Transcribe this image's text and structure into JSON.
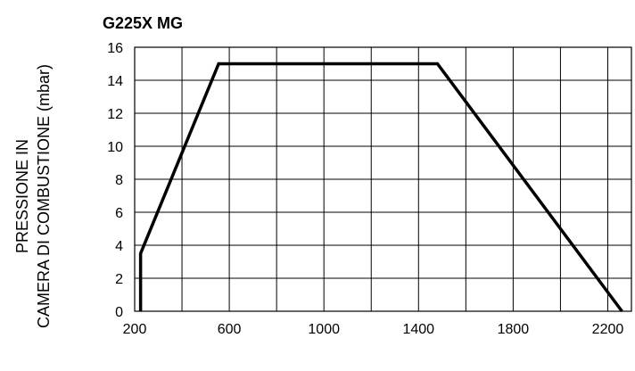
{
  "chart_data": {
    "type": "line",
    "title": "G225X MG",
    "ylabel_lines": [
      "PRESSIONE IN",
      "CAMERA DI COMBUSTIONE (mbar)"
    ],
    "xlabel": "",
    "xlim": [
      200,
      2300
    ],
    "ylim": [
      0,
      16
    ],
    "x_ticks": [
      200,
      600,
      1000,
      1400,
      1800,
      2200
    ],
    "x_tick_labels": [
      "200",
      "600",
      "1000",
      "1400",
      "1800",
      "2200"
    ],
    "x_grid": [
      200,
      400,
      600,
      800,
      1000,
      1200,
      1400,
      1600,
      1800,
      2000,
      2200,
      2300
    ],
    "y_ticks": [
      0,
      2,
      4,
      6,
      8,
      10,
      12,
      14,
      16
    ],
    "y_tick_labels": [
      "0",
      "2",
      "4",
      "6",
      "8",
      "10",
      "12",
      "14",
      "16"
    ],
    "grid": true,
    "series": [
      {
        "x": [
          225,
          225,
          555,
          1480,
          2260
        ],
        "y": [
          0,
          3.5,
          15,
          15,
          0
        ],
        "color": "#000000"
      }
    ]
  }
}
